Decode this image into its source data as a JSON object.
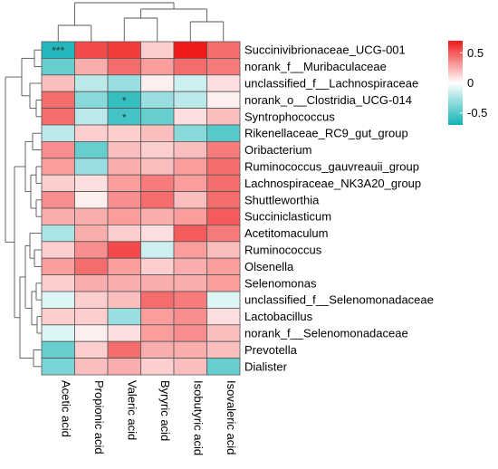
{
  "chart_data": {
    "type": "heatmap",
    "rows": [
      "Succinivibrionaceae_UCG-001",
      "norank_f__Muribaculaceae",
      "unclassified_f__Lachnospiraceae",
      "norank_o__Clostridia_UCG-014",
      "Syntrophococcus",
      "Rikenellaceae_RC9_gut_group",
      "Oribacterium",
      "Ruminococcus_gauvreauii_group",
      "Lachnospiraceae_NK3A20_group",
      "Shuttleworthia",
      "Succiniclasticum",
      "Acetitomaculum",
      "Ruminococcus",
      "Olsenella",
      "Selenomonas",
      "unclassified_f__Selenomonadaceae",
      "Lactobacillus",
      "norank_f__Selenomonadaceae",
      "Prevotella",
      "Dialister"
    ],
    "columns": [
      "Acetic acid",
      "Propionic acid",
      "Valeric acid",
      "Byryric acid",
      "Isobutyric acid",
      "Isovaleric acid"
    ],
    "values": [
      [
        -0.65,
        0.55,
        0.6,
        0.15,
        0.7,
        0.45
      ],
      [
        -0.45,
        0.25,
        0.45,
        0.3,
        0.45,
        0.4
      ],
      [
        0.2,
        -0.2,
        -0.3,
        0.05,
        -0.15,
        0.1
      ],
      [
        0.45,
        -0.35,
        -0.6,
        -0.3,
        -0.2,
        0.05
      ],
      [
        0.45,
        -0.2,
        -0.55,
        -0.45,
        0.1,
        0.2
      ],
      [
        -0.2,
        0.15,
        0.15,
        0.2,
        -0.35,
        -0.5
      ],
      [
        0.35,
        -0.45,
        0.2,
        0.15,
        0.2,
        0.4
      ],
      [
        0.3,
        -0.3,
        0.25,
        0.2,
        0.3,
        0.45
      ],
      [
        0.15,
        0.1,
        0.3,
        0.4,
        0.3,
        0.45
      ],
      [
        0.35,
        0.05,
        0.35,
        0.45,
        0.2,
        0.45
      ],
      [
        0.25,
        0.25,
        0.3,
        0.25,
        0.3,
        0.5
      ],
      [
        -0.25,
        0.25,
        0.15,
        0.1,
        0.5,
        0.4
      ],
      [
        0.15,
        0.35,
        0.55,
        -0.15,
        0.3,
        0.2
      ],
      [
        0.3,
        0.45,
        0.3,
        0.15,
        0.25,
        0.3
      ],
      [
        0.15,
        0.25,
        0.25,
        0.25,
        0.25,
        0.3
      ],
      [
        -0.1,
        0.15,
        0.2,
        0.45,
        0.4,
        -0.1
      ],
      [
        0.15,
        0.15,
        -0.3,
        0.3,
        0.35,
        0.1
      ],
      [
        -0.1,
        0.05,
        0.1,
        0.3,
        0.35,
        0.2
      ],
      [
        -0.45,
        0.15,
        0.45,
        0.25,
        0.25,
        0.2
      ],
      [
        -0.4,
        0.2,
        0.25,
        0.15,
        0.2,
        -0.45
      ]
    ],
    "significance": [
      {
        "row": 0,
        "col": 0,
        "mark": "***"
      },
      {
        "row": 3,
        "col": 2,
        "mark": "*"
      },
      {
        "row": 4,
        "col": 2,
        "mark": "*"
      }
    ],
    "color_scale": {
      "min": -0.7,
      "max": 0.7,
      "low_color": "#12b3b6",
      "mid_color": "#ffffff",
      "high_color": "#f01a1a",
      "ticks": [
        0.5,
        0,
        -0.5
      ],
      "tick_labels": [
        "0.5",
        "0",
        "-0.5"
      ]
    },
    "row_dendrogram": true,
    "column_dendrogram": true,
    "legend_position": "top-right"
  }
}
